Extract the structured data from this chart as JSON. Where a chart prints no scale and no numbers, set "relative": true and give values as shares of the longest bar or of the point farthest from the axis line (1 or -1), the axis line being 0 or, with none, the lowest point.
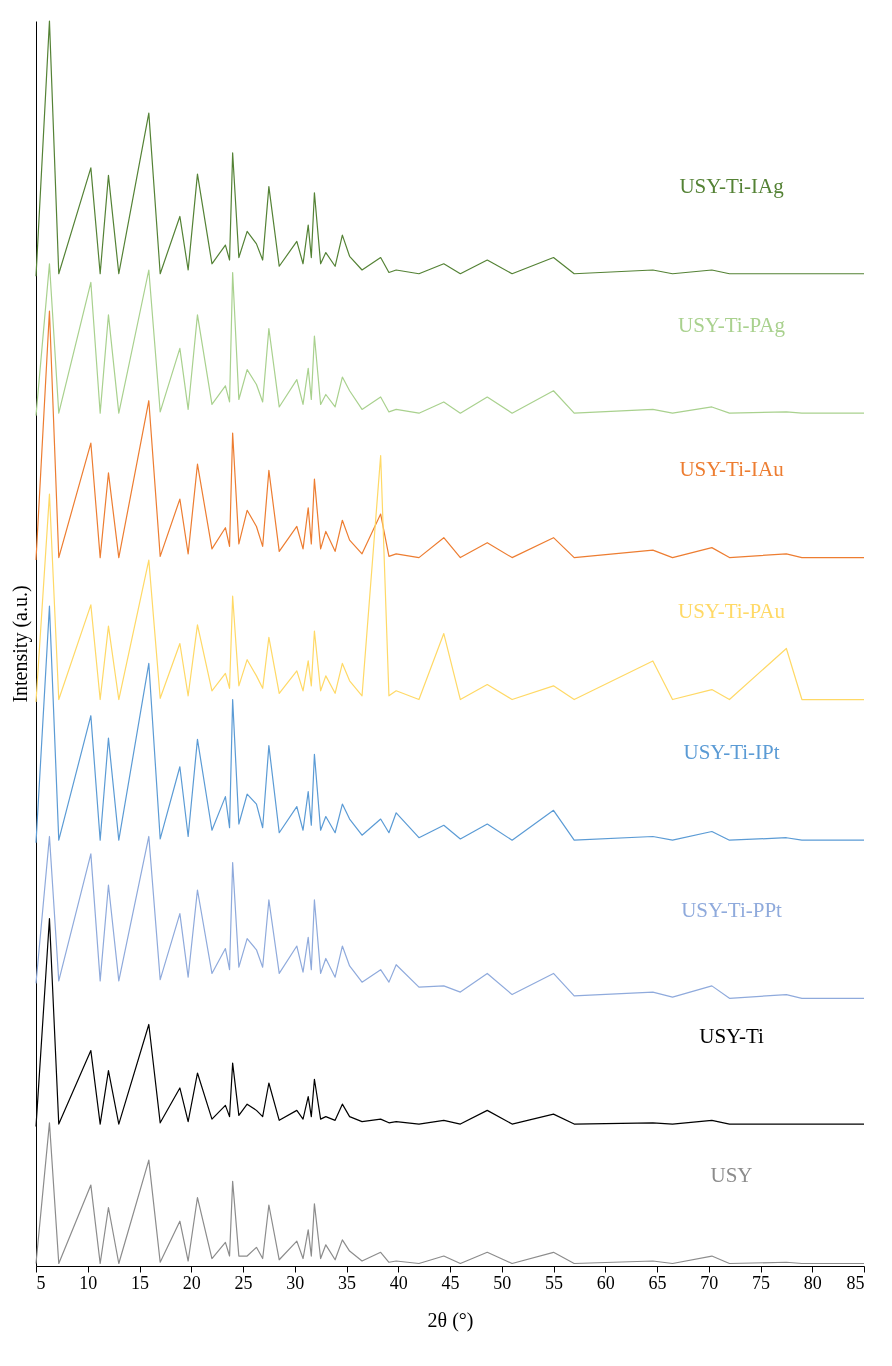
{
  "chart_data": {
    "type": "line",
    "relative": true,
    "xlabel": "2θ (°)",
    "ylabel": "Intensity (a.u.)",
    "xlim": [
      5,
      85
    ],
    "xticks": [
      5,
      10,
      15,
      20,
      25,
      30,
      35,
      40,
      45,
      50,
      55,
      60,
      65,
      70,
      75,
      80,
      85
    ],
    "tick_labels": "x",
    "grid": false,
    "legend": false,
    "line_style": "solid",
    "x": [
      5,
      6.3,
      7.2,
      10.3,
      11.2,
      12.0,
      13,
      15.9,
      17,
      18.9,
      19.7,
      20.6,
      22,
      23.3,
      23.7,
      24.0,
      24.6,
      25.4,
      26.3,
      26.9,
      27.5,
      28.5,
      30.2,
      30.8,
      31.3,
      31.6,
      31.9,
      32.5,
      33.0,
      33.9,
      34.6,
      35.3,
      36.5,
      38.3,
      39.1,
      39.8,
      42,
      44.4,
      46,
      48.6,
      51,
      55.0,
      57,
      64.6,
      66.5,
      70.3,
      72,
      77.5,
      79,
      85
    ],
    "series": [
      {
        "name": "USY-Ti-IAg",
        "color": "#548235",
        "values": [
          0.795,
          1.0,
          0.797,
          0.882,
          0.797,
          0.876,
          0.797,
          0.926,
          0.797,
          0.843,
          0.8,
          0.877,
          0.805,
          0.82,
          0.808,
          0.894,
          0.81,
          0.831,
          0.821,
          0.808,
          0.867,
          0.803,
          0.823,
          0.805,
          0.836,
          0.81,
          0.862,
          0.805,
          0.814,
          0.803,
          0.828,
          0.811,
          0.8,
          0.81,
          0.798,
          0.8,
          0.797,
          0.805,
          0.797,
          0.808,
          0.797,
          0.81,
          0.797,
          0.8,
          0.797,
          0.8,
          0.797,
          0.797,
          0.797,
          0.797
        ]
      },
      {
        "name": "USY-Ti-PAg",
        "color": "#a9d18e",
        "values": [
          0.683,
          0.805,
          0.685,
          0.79,
          0.685,
          0.764,
          0.685,
          0.8,
          0.686,
          0.737,
          0.688,
          0.764,
          0.692,
          0.707,
          0.694,
          0.798,
          0.696,
          0.72,
          0.708,
          0.694,
          0.753,
          0.69,
          0.712,
          0.692,
          0.721,
          0.696,
          0.747,
          0.692,
          0.7,
          0.69,
          0.714,
          0.703,
          0.688,
          0.698,
          0.686,
          0.688,
          0.685,
          0.694,
          0.685,
          0.698,
          0.685,
          0.703,
          0.685,
          0.688,
          0.685,
          0.69,
          0.685,
          0.686,
          0.685,
          0.685
        ]
      },
      {
        "name": "USY-Ti-IAu",
        "color": "#ed7d31",
        "values": [
          0.567,
          0.767,
          0.569,
          0.661,
          0.569,
          0.637,
          0.569,
          0.695,
          0.57,
          0.616,
          0.572,
          0.644,
          0.576,
          0.593,
          0.578,
          0.669,
          0.58,
          0.607,
          0.594,
          0.578,
          0.639,
          0.574,
          0.594,
          0.576,
          0.609,
          0.58,
          0.632,
          0.576,
          0.59,
          0.574,
          0.599,
          0.583,
          0.572,
          0.604,
          0.57,
          0.572,
          0.569,
          0.585,
          0.569,
          0.581,
          0.569,
          0.585,
          0.569,
          0.575,
          0.569,
          0.577,
          0.569,
          0.572,
          0.569,
          0.569
        ]
      },
      {
        "name": "USY-Ti-PAu",
        "color": "#ffd966",
        "values": [
          0.453,
          0.62,
          0.455,
          0.531,
          0.455,
          0.514,
          0.455,
          0.567,
          0.456,
          0.5,
          0.458,
          0.515,
          0.462,
          0.476,
          0.464,
          0.538,
          0.466,
          0.487,
          0.474,
          0.464,
          0.505,
          0.46,
          0.478,
          0.462,
          0.486,
          0.466,
          0.51,
          0.462,
          0.474,
          0.46,
          0.484,
          0.47,
          0.458,
          0.651,
          0.458,
          0.462,
          0.455,
          0.508,
          0.455,
          0.467,
          0.455,
          0.466,
          0.455,
          0.486,
          0.455,
          0.463,
          0.455,
          0.496,
          0.455,
          0.455
        ]
      },
      {
        "name": "USY-Ti-IPt",
        "color": "#5b9bd5",
        "values": [
          0.34,
          0.53,
          0.342,
          0.442,
          0.342,
          0.424,
          0.342,
          0.484,
          0.343,
          0.401,
          0.345,
          0.423,
          0.35,
          0.377,
          0.352,
          0.455,
          0.355,
          0.379,
          0.371,
          0.352,
          0.418,
          0.348,
          0.369,
          0.35,
          0.381,
          0.354,
          0.411,
          0.35,
          0.361,
          0.348,
          0.371,
          0.359,
          0.346,
          0.359,
          0.348,
          0.364,
          0.344,
          0.354,
          0.343,
          0.355,
          0.342,
          0.366,
          0.342,
          0.345,
          0.342,
          0.349,
          0.342,
          0.344,
          0.342,
          0.342
        ]
      },
      {
        "name": "USY-Ti-PPt",
        "color": "#8faadc",
        "values": [
          0.227,
          0.345,
          0.229,
          0.331,
          0.229,
          0.306,
          0.229,
          0.345,
          0.23,
          0.283,
          0.232,
          0.302,
          0.235,
          0.255,
          0.238,
          0.324,
          0.24,
          0.263,
          0.254,
          0.24,
          0.294,
          0.235,
          0.257,
          0.236,
          0.264,
          0.238,
          0.294,
          0.235,
          0.247,
          0.232,
          0.257,
          0.241,
          0.228,
          0.238,
          0.228,
          0.242,
          0.224,
          0.225,
          0.22,
          0.235,
          0.218,
          0.235,
          0.217,
          0.22,
          0.216,
          0.225,
          0.215,
          0.218,
          0.215,
          0.215
        ]
      },
      {
        "name": "USY-Ti",
        "color": "#000000",
        "values": [
          0.112,
          0.279,
          0.114,
          0.173,
          0.114,
          0.157,
          0.114,
          0.194,
          0.115,
          0.143,
          0.116,
          0.155,
          0.118,
          0.129,
          0.12,
          0.163,
          0.121,
          0.13,
          0.125,
          0.12,
          0.147,
          0.117,
          0.125,
          0.118,
          0.136,
          0.12,
          0.15,
          0.118,
          0.12,
          0.117,
          0.13,
          0.12,
          0.116,
          0.118,
          0.115,
          0.116,
          0.114,
          0.117,
          0.114,
          0.125,
          0.114,
          0.122,
          0.114,
          0.115,
          0.114,
          0.117,
          0.114,
          0.114,
          0.114,
          0.114
        ]
      },
      {
        "name": "USY",
        "color": "#8c8c8c",
        "values": [
          0.002,
          0.115,
          0.002,
          0.065,
          0.002,
          0.047,
          0.002,
          0.085,
          0.003,
          0.036,
          0.004,
          0.055,
          0.006,
          0.019,
          0.008,
          0.068,
          0.008,
          0.008,
          0.015,
          0.006,
          0.049,
          0.005,
          0.02,
          0.006,
          0.029,
          0.008,
          0.05,
          0.006,
          0.017,
          0.005,
          0.021,
          0.012,
          0.004,
          0.011,
          0.003,
          0.004,
          0.002,
          0.008,
          0.002,
          0.011,
          0.002,
          0.011,
          0.002,
          0.004,
          0.002,
          0.008,
          0.002,
          0.003,
          0.002,
          0.002
        ]
      }
    ]
  }
}
